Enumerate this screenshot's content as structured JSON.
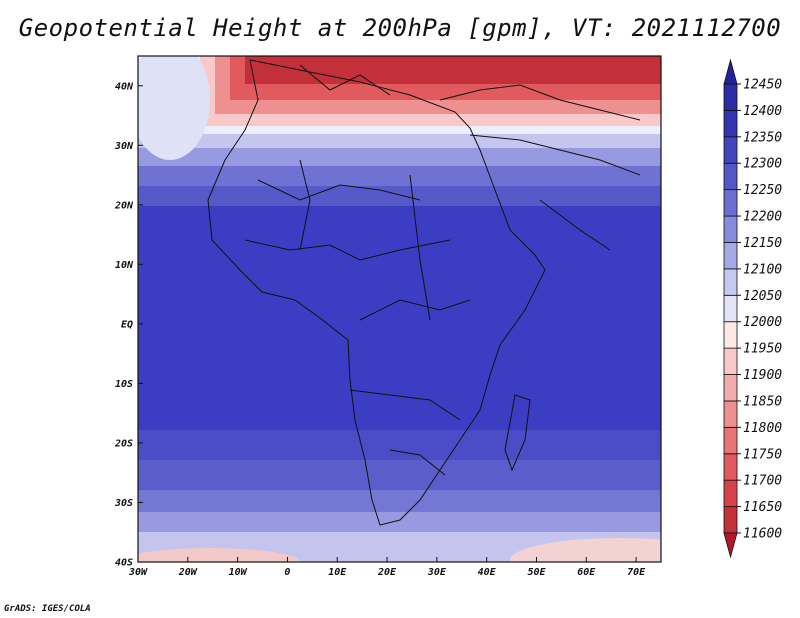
{
  "title": "Geopotential Height at 200hPa [gpm], VT: 2021112700",
  "credit": "GrADS: IGES/COLA",
  "map": {
    "lon_range": [
      -30,
      75
    ],
    "lat_range": [
      -40,
      45
    ],
    "lon_ticks": [
      {
        "value": -30,
        "label": "30W"
      },
      {
        "value": -20,
        "label": "20W"
      },
      {
        "value": -10,
        "label": "10W"
      },
      {
        "value": 0,
        "label": "0"
      },
      {
        "value": 10,
        "label": "10E"
      },
      {
        "value": 20,
        "label": "20E"
      },
      {
        "value": 30,
        "label": "30E"
      },
      {
        "value": 40,
        "label": "40E"
      },
      {
        "value": 50,
        "label": "50E"
      },
      {
        "value": 60,
        "label": "60E"
      },
      {
        "value": 70,
        "label": "70E"
      }
    ],
    "lat_ticks": [
      {
        "value": 40,
        "label": "40N"
      },
      {
        "value": 30,
        "label": "30N"
      },
      {
        "value": 20,
        "label": "20N"
      },
      {
        "value": 10,
        "label": "10N"
      },
      {
        "value": 0,
        "label": "EQ"
      },
      {
        "value": -10,
        "label": "10S"
      },
      {
        "value": -20,
        "label": "20S"
      },
      {
        "value": -30,
        "label": "30S"
      },
      {
        "value": -40,
        "label": "40S"
      }
    ]
  },
  "colorbar": {
    "levels": [
      "11600",
      "11650",
      "11700",
      "11750",
      "11800",
      "11850",
      "11900",
      "11950",
      "12000",
      "12050",
      "12100",
      "12150",
      "12200",
      "12250",
      "12300",
      "12350",
      "12400",
      "12450"
    ],
    "colors": [
      "#b2182b",
      "#c4303a",
      "#d6414a",
      "#e05a5e",
      "#e87476",
      "#ee8f90",
      "#f3abab",
      "#f8c9c8",
      "#fde8e6",
      "#e3e5f7",
      "#c6c9ef",
      "#a5a9e6",
      "#878bdc",
      "#6c6fd2",
      "#5457c7",
      "#4245bd",
      "#3234b1",
      "#2a2ca6",
      "#22229a"
    ]
  }
}
